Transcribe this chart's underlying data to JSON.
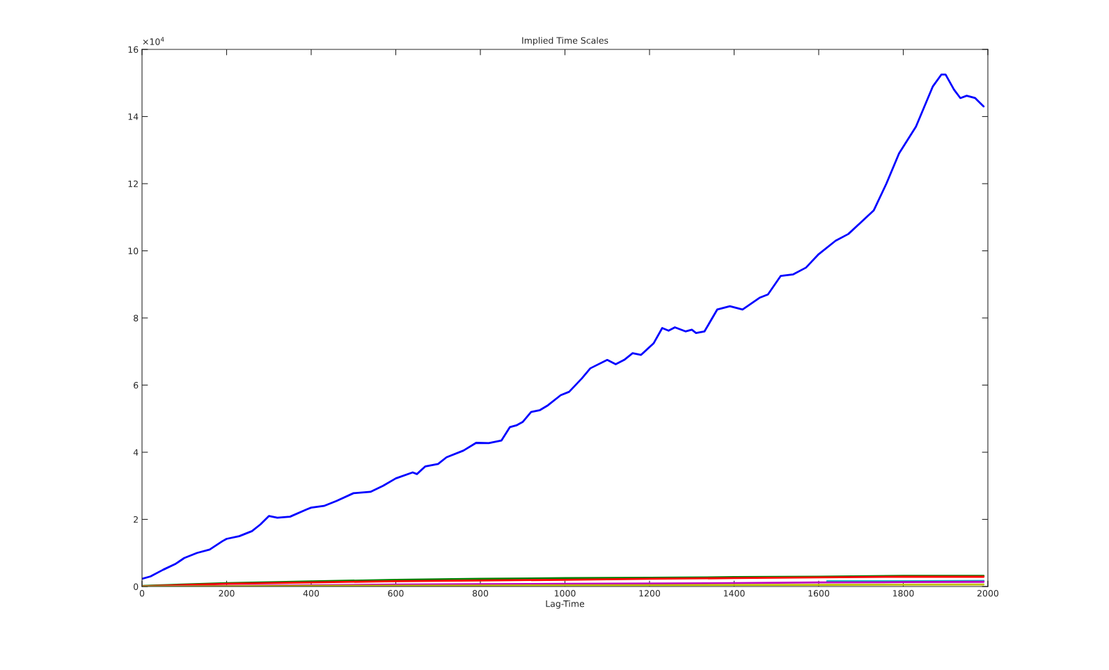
{
  "chart_data": {
    "type": "line",
    "title": "Implied Time Scales",
    "xlabel": "Lag-Time",
    "annotations": [
      "×10$^{4}$"
    ],
    "xlim": [
      0,
      2000
    ],
    "xticks": [
      0,
      200,
      400,
      600,
      800,
      1000,
      1200,
      1400,
      1600,
      1800,
      2000
    ],
    "ylim": [
      0,
      16
    ],
    "yticks": [
      0,
      2,
      4,
      6,
      8,
      10,
      12,
      14,
      16
    ],
    "grid": false,
    "legend": false,
    "line_style": "solid",
    "marker": "none",
    "series": [
      {
        "color": "#0000ff",
        "x": [
          0,
          20,
          50,
          80,
          100,
          130,
          160,
          190,
          200,
          230,
          260,
          280,
          300,
          320,
          350,
          390,
          400,
          430,
          460,
          500,
          540,
          570,
          600,
          640,
          650,
          670,
          700,
          720,
          760,
          790,
          820,
          850,
          870,
          885,
          900,
          920,
          940,
          960,
          990,
          1010,
          1040,
          1060,
          1100,
          1120,
          1140,
          1160,
          1180,
          1210,
          1230,
          1245,
          1260,
          1285,
          1300,
          1310,
          1330,
          1360,
          1390,
          1420,
          1460,
          1480,
          1510,
          1540,
          1570,
          1600,
          1640,
          1670,
          1700,
          1730,
          1760,
          1790,
          1810,
          1830,
          1850,
          1870,
          1890,
          1900,
          1920,
          1935,
          1950,
          1970,
          1990
        ],
        "values": [
          0.23,
          0.3,
          0.5,
          0.68,
          0.85,
          1.0,
          1.1,
          1.35,
          1.42,
          1.5,
          1.65,
          1.85,
          2.1,
          2.05,
          2.08,
          2.3,
          2.35,
          2.4,
          2.55,
          2.78,
          2.82,
          3.0,
          3.22,
          3.4,
          3.35,
          3.58,
          3.65,
          3.85,
          4.05,
          4.28,
          4.27,
          4.35,
          4.75,
          4.8,
          4.9,
          5.2,
          5.25,
          5.4,
          5.7,
          5.8,
          6.2,
          6.5,
          6.75,
          6.62,
          6.75,
          6.95,
          6.9,
          7.25,
          7.7,
          7.62,
          7.72,
          7.6,
          7.65,
          7.55,
          7.6,
          8.25,
          8.35,
          8.25,
          8.6,
          8.7,
          9.25,
          9.3,
          9.5,
          9.9,
          10.3,
          10.5,
          10.85,
          11.2,
          12.0,
          12.9,
          13.3,
          13.7,
          14.3,
          14.9,
          15.25,
          15.25,
          14.8,
          14.55,
          14.62,
          14.55,
          14.3
        ]
      },
      {
        "color": "#008000",
        "x": [
          0,
          200,
          400,
          600,
          800,
          1000,
          1200,
          1400,
          1600,
          1800,
          1990
        ],
        "values": [
          0.02,
          0.1,
          0.15,
          0.2,
          0.23,
          0.25,
          0.26,
          0.28,
          0.29,
          0.32,
          0.32
        ]
      },
      {
        "color": "#ff0000",
        "x": [
          0,
          200,
          400,
          600,
          800,
          1000,
          1200,
          1400,
          1600,
          1800,
          1990
        ],
        "values": [
          0.01,
          0.08,
          0.12,
          0.16,
          0.18,
          0.2,
          0.23,
          0.25,
          0.27,
          0.29,
          0.29
        ]
      },
      {
        "color": "#00bfbf",
        "x": [
          1620,
          1800,
          1990
        ],
        "values": [
          0.16,
          0.16,
          0.17
        ]
      },
      {
        "color": "#bf00bf",
        "x": [
          0,
          400,
          600,
          800,
          1000,
          1400,
          1600,
          1800,
          1990
        ],
        "values": [
          0.0,
          0.04,
          0.06,
          0.07,
          0.08,
          0.1,
          0.12,
          0.13,
          0.14
        ]
      },
      {
        "color": "#bfbf00",
        "x": [
          0,
          400,
          800,
          1200,
          1600,
          1990
        ],
        "values": [
          0.0,
          0.02,
          0.03,
          0.04,
          0.05,
          0.06
        ]
      }
    ]
  }
}
